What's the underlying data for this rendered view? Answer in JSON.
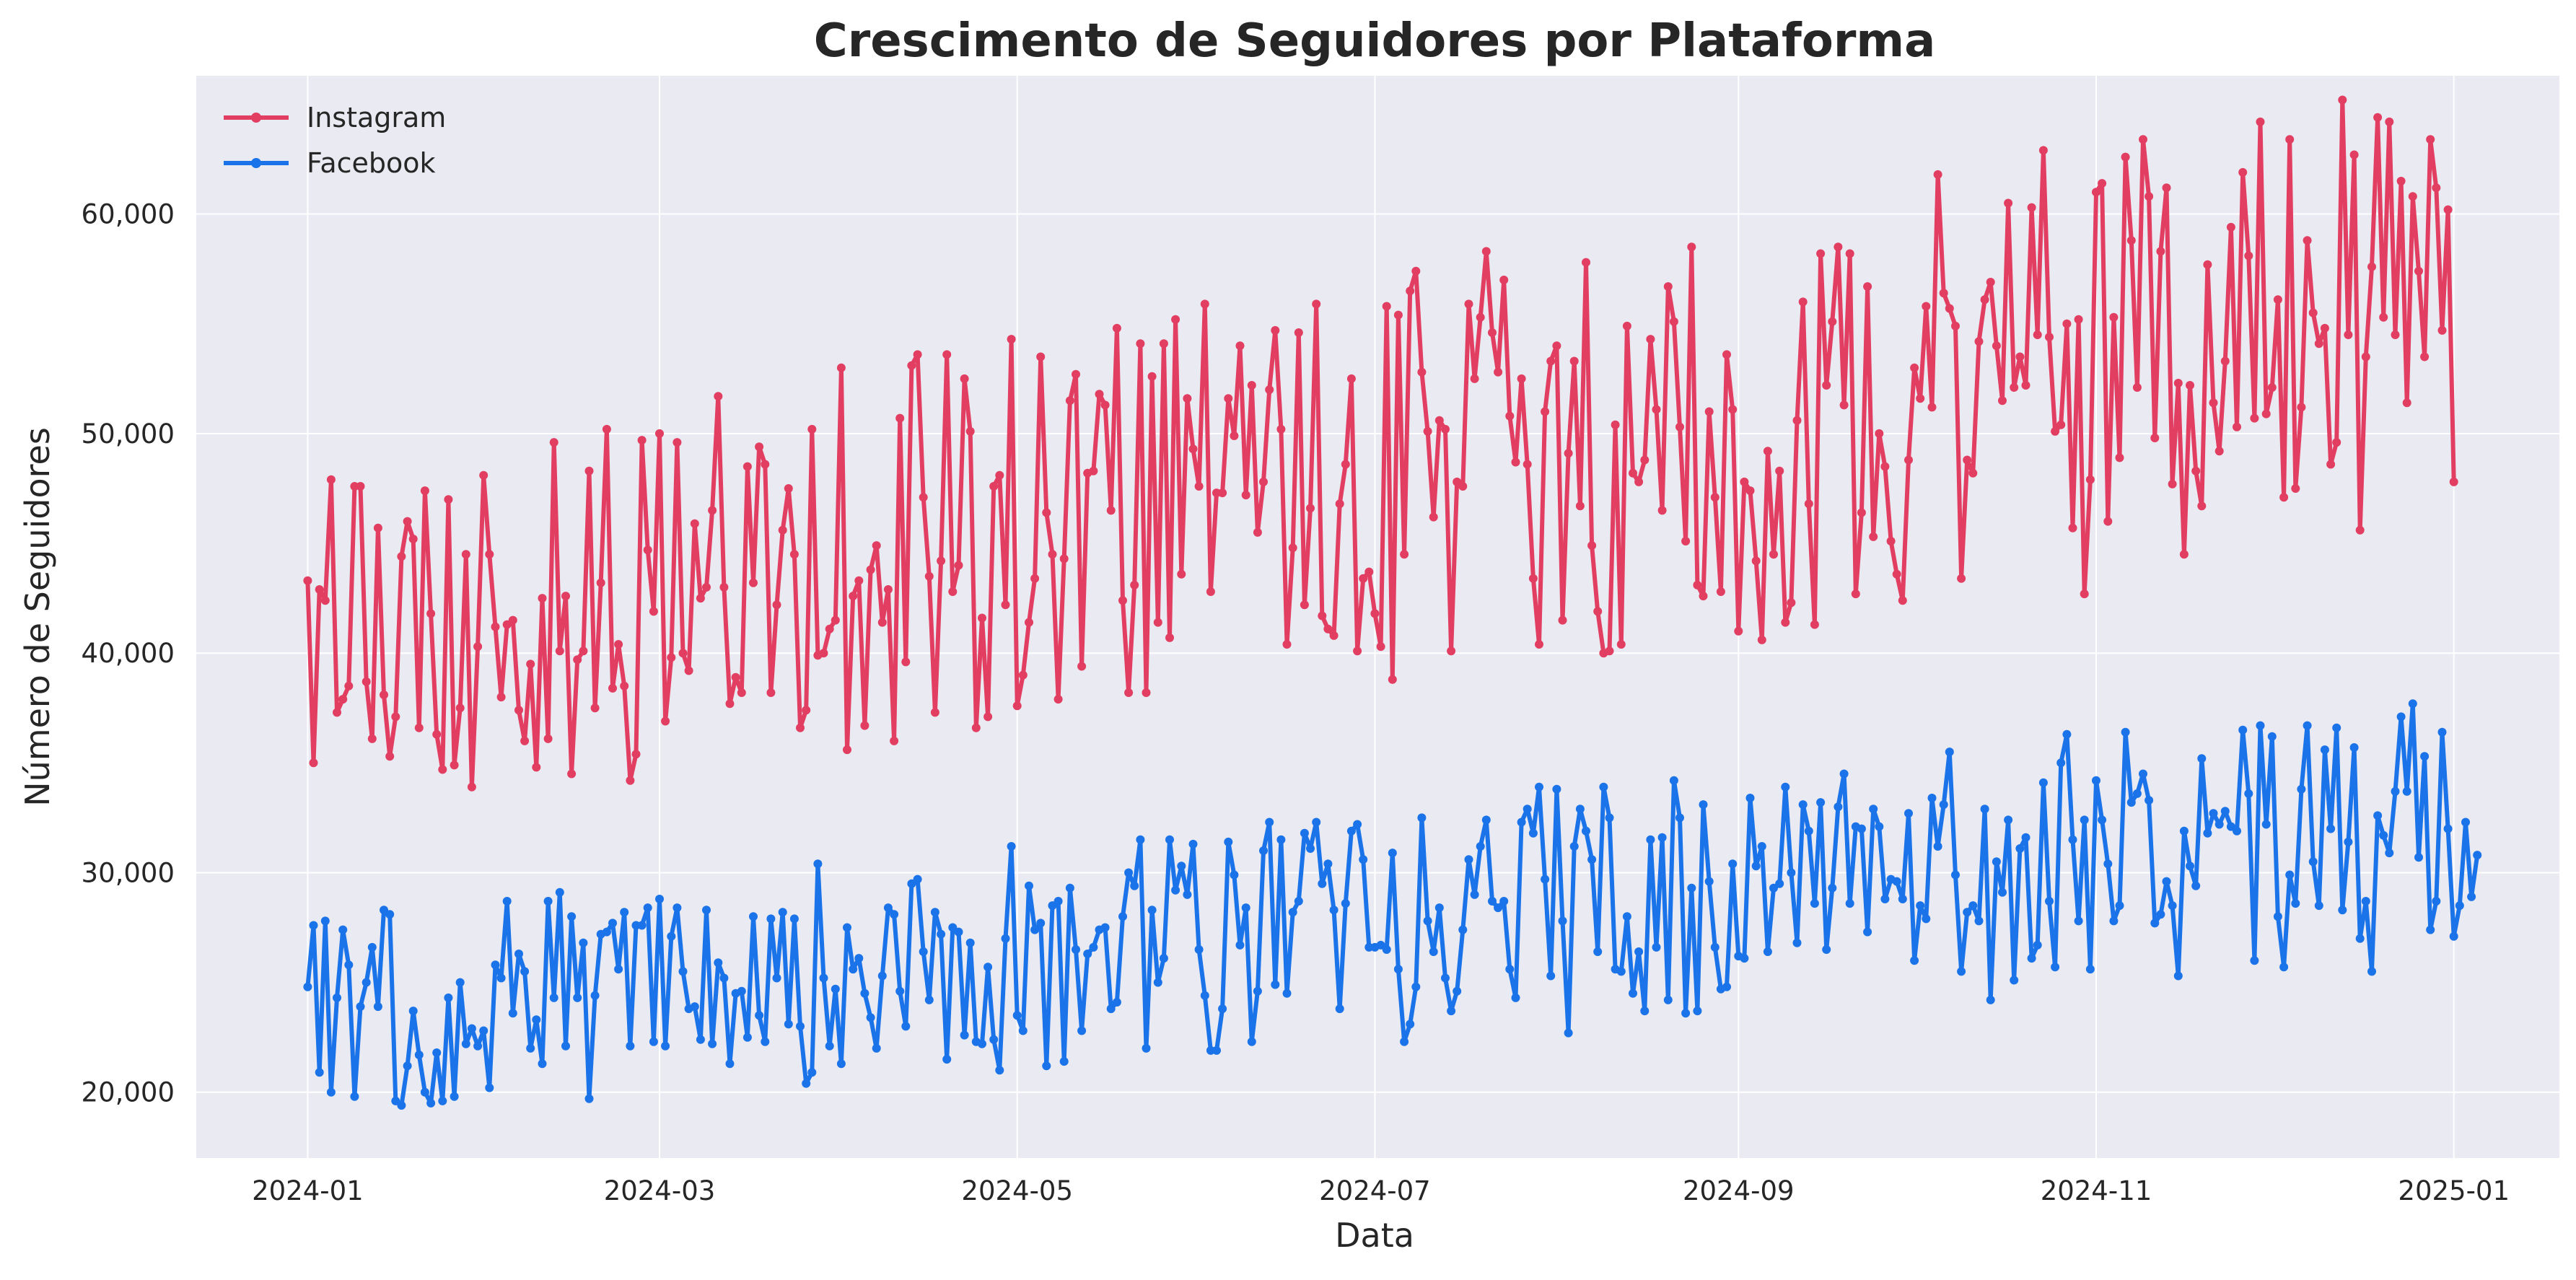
{
  "colors": {
    "instagram": "#e23e62",
    "facebook": "#1a73e8",
    "plot_background": "#eaeaf2",
    "grid": "#ffffff",
    "text": "#262626"
  },
  "chart_data": {
    "type": "line",
    "title": "Crescimento de Seguidores por Plataforma",
    "xlabel": "Data",
    "ylabel": "Número de Seguidores",
    "xlim": [
      "2023-12-13",
      "2025-01-19"
    ],
    "ylim": [
      17000,
      66300
    ],
    "x_ticks": [
      "2024-01-01",
      "2024-03-01",
      "2024-05-01",
      "2024-07-01",
      "2024-09-01",
      "2024-11-01",
      "2025-01-01"
    ],
    "x_tick_labels": [
      "2024-01",
      "2024-03",
      "2024-05",
      "2024-07",
      "2024-09",
      "2024-11",
      "2025-01"
    ],
    "y_ticks": [
      20000,
      30000,
      40000,
      50000,
      60000
    ],
    "y_tick_labels": [
      "20,000",
      "30,000",
      "40,000",
      "50,000",
      "60,000"
    ],
    "grid": true,
    "legend": "top-left",
    "markers": "circle",
    "x": {
      "start": "2024-01-01",
      "end": "2024-12-31",
      "frequency": "daily"
    },
    "series": [
      {
        "name": "Instagram",
        "values": [
          43300,
          35000,
          42900,
          42400,
          47900,
          37300,
          37900,
          38500,
          47600,
          47600,
          38700,
          36100,
          45700,
          38100,
          35300,
          37100,
          44400,
          46000,
          45200,
          36600,
          47400,
          41800,
          36300,
          34700,
          47000,
          34900,
          37500,
          44500,
          33900,
          40300,
          48100,
          44500,
          41200,
          38000,
          41300,
          41500,
          37400,
          36000,
          39500,
          34800,
          42500,
          36100,
          49600,
          40100,
          42600,
          34500,
          39700,
          40100,
          48300,
          37500,
          43200,
          50200,
          38400,
          40400,
          38500,
          34200,
          35400,
          49700,
          44700,
          41900,
          50000,
          36900,
          39800,
          49600,
          40000,
          39200,
          45900,
          42500,
          43000,
          46500,
          51700,
          43000,
          37700,
          38900,
          38200,
          48500,
          43200,
          49400,
          48600,
          38200,
          42200,
          45600,
          47500,
          44500,
          36600,
          37400,
          50200,
          39900,
          40000,
          41100,
          41500,
          53000,
          35600,
          42600,
          43300,
          36700,
          43800,
          44900,
          41400,
          42900,
          36000,
          50700,
          39600,
          53100,
          53600,
          47100,
          43500,
          37300,
          44200,
          53600,
          42800,
          44000,
          52500,
          50100,
          36600,
          41600,
          37100,
          47600,
          48100,
          42200,
          54300,
          37600,
          39000,
          41400,
          43400,
          53500,
          46400,
          44500,
          37900,
          44300,
          51500,
          52700,
          39400,
          48200,
          48300,
          51800,
          51300,
          46500,
          54800,
          42400,
          38200,
          43100,
          54100,
          38200,
          52600,
          41400,
          54100,
          40700,
          55200,
          43600,
          51600,
          49300,
          47600,
          55900,
          42800,
          47300,
          47300,
          51600,
          49900,
          54000,
          47200,
          52200,
          45500,
          47800,
          52000,
          54700,
          50200,
          40400,
          44800,
          54600,
          42200,
          46600,
          55900,
          41700,
          41100,
          40800,
          46800,
          48600,
          52500,
          40100,
          43400,
          43700,
          41800,
          40300,
          55800,
          38800,
          55400,
          44500,
          56500,
          57400,
          52800,
          50100,
          46200,
          50600,
          50200,
          40100,
          47800,
          47600,
          55900,
          52500,
          55300,
          58300,
          54600,
          52800,
          57000,
          50800,
          48700,
          52500,
          48600,
          43400,
          40400,
          51000,
          53300,
          54000,
          41500,
          49100,
          53300,
          46700,
          57800,
          44900,
          41900,
          40000,
          40100,
          50400,
          40400,
          54900,
          48200,
          47800,
          48800,
          54300,
          51100,
          46500,
          56700,
          55100,
          50300,
          45100,
          58500,
          43100,
          42600,
          51000,
          47100,
          42800,
          53600,
          51100,
          41000,
          47800,
          47400,
          44200,
          40600,
          49200,
          44500,
          48300,
          41400,
          42300,
          50600,
          56000,
          46800,
          41300,
          58200,
          52200,
          55100,
          58500,
          51300,
          58200,
          42700,
          46400,
          56700,
          45300,
          50000,
          48500,
          45100,
          43600,
          42400,
          48800,
          53000,
          51600,
          55800,
          51200,
          61800,
          56400,
          55700,
          54900,
          43400,
          48800,
          48200,
          54200,
          56100,
          56900,
          54000,
          51500,
          60500,
          52100,
          53500,
          52200,
          60300,
          54500,
          62900,
          54400,
          50100,
          50400,
          55000,
          45700,
          55200,
          42700,
          47900,
          61000,
          61400,
          46000,
          55300,
          48900,
          62600,
          58800,
          52100,
          63400,
          60800,
          49800,
          58300,
          61200,
          47700,
          52300,
          44500,
          52200,
          48300,
          46700,
          57700,
          51400,
          49200,
          53300,
          59400,
          50300,
          61900,
          58100,
          50700,
          64200,
          50900,
          52100,
          56100,
          47100,
          63400,
          47500,
          51200,
          58800,
          55500,
          54100,
          54800,
          48600,
          49600,
          65200,
          54500,
          62700,
          45600,
          53500,
          57600,
          64400,
          55300,
          64200,
          54500,
          61500,
          51400,
          60800,
          57400,
          53500,
          63400,
          61200,
          54700,
          60200,
          47800
        ]
      },
      {
        "name": "Facebook",
        "values": [
          24800,
          27600,
          20900,
          27800,
          20000,
          24300,
          27400,
          25800,
          19800,
          23900,
          25000,
          26600,
          23900,
          28300,
          28100,
          19600,
          19400,
          21200,
          23700,
          21700,
          20000,
          19500,
          21800,
          19600,
          24300,
          19800,
          25000,
          22200,
          22900,
          22100,
          22800,
          20200,
          25800,
          25200,
          28700,
          23600,
          26300,
          25500,
          22000,
          23300,
          21300,
          28700,
          24300,
          29100,
          22100,
          28000,
          24300,
          26800,
          19700,
          24400,
          27200,
          27300,
          27700,
          25600,
          28200,
          22100,
          27600,
          27600,
          28400,
          22300,
          28800,
          22100,
          27100,
          28400,
          25500,
          23800,
          23900,
          22400,
          28300,
          22200,
          25900,
          25200,
          21300,
          24500,
          24600,
          22500,
          28000,
          23500,
          22300,
          27900,
          25200,
          28200,
          23100,
          27900,
          23000,
          20400,
          20900,
          30400,
          25200,
          22100,
          24700,
          21300,
          27500,
          25600,
          26100,
          24500,
          23400,
          22000,
          25300,
          28400,
          28100,
          24600,
          23000,
          29500,
          29700,
          26400,
          24200,
          28200,
          27200,
          21500,
          27500,
          27300,
          22600,
          26800,
          22300,
          22200,
          25700,
          22400,
          21000,
          27000,
          31200,
          23500,
          22800,
          29400,
          27400,
          27700,
          21200,
          28500,
          28700,
          21400,
          29300,
          26500,
          22800,
          26300,
          26600,
          27400,
          27500,
          23800,
          24100,
          28000,
          30000,
          29400,
          31500,
          22000,
          28300,
          25000,
          26100,
          31500,
          29200,
          30300,
          29000,
          31300,
          26500,
          24400,
          21900,
          21900,
          23800,
          31400,
          29900,
          26700,
          28400,
          22300,
          24600,
          31000,
          32300,
          24900,
          31500,
          24500,
          28200,
          28700,
          31800,
          31100,
          32300,
          29500,
          30400,
          28300,
          23800,
          28600,
          31900,
          32200,
          30600,
          26600,
          26600,
          26700,
          26500,
          30900,
          25600,
          22300,
          23100,
          24800,
          32500,
          27800,
          26400,
          28400,
          25200,
          23700,
          24600,
          27400,
          30600,
          29000,
          31200,
          32400,
          28700,
          28400,
          28700,
          25600,
          24300,
          32300,
          32900,
          31800,
          33900,
          29700,
          25300,
          33800,
          27800,
          22700,
          31200,
          32900,
          31900,
          30600,
          26400,
          33900,
          32500,
          25600,
          25500,
          28000,
          24500,
          26400,
          23700,
          31500,
          26600,
          31600,
          24200,
          34200,
          32500,
          23600,
          29300,
          23700,
          33100,
          29600,
          26600,
          24700,
          24800,
          30400,
          26200,
          26100,
          33400,
          30300,
          31200,
          26400,
          29300,
          29500,
          33900,
          30000,
          26800,
          33100,
          31900,
          28600,
          33200,
          26500,
          29300,
          33000,
          34500,
          28600,
          32100,
          32000,
          27300,
          32900,
          32100,
          28800,
          29700,
          29600,
          28800,
          32700,
          26000,
          28500,
          27900,
          33400,
          31200,
          33100,
          35500,
          29900,
          25500,
          28200,
          28500,
          27800,
          32900,
          24200,
          30500,
          29100,
          32400,
          25100,
          31100,
          31600,
          26100,
          26700,
          34100,
          28700,
          25700,
          35000,
          36300,
          31500,
          27800,
          32400,
          25600,
          34200,
          32400,
          30400,
          27800,
          28500,
          36400,
          33200,
          33600,
          34500,
          33300,
          27700,
          28100,
          29600,
          28500,
          25300,
          31900,
          30300,
          29400,
          35200,
          31800,
          32700,
          32200,
          32800,
          32100,
          31900,
          36500,
          33600,
          26000,
          36700,
          32200,
          36200,
          28000,
          25700,
          29900,
          28600,
          33800,
          36700,
          30500,
          28500,
          35600,
          32000,
          36600,
          28300,
          31400,
          35700,
          27000,
          28700,
          25500,
          32600,
          31700,
          30900,
          33700,
          37100,
          33700,
          37700,
          30700,
          35300,
          27400,
          28700,
          36400,
          32000,
          27100,
          28500,
          32300,
          28900,
          30800
        ]
      }
    ]
  }
}
